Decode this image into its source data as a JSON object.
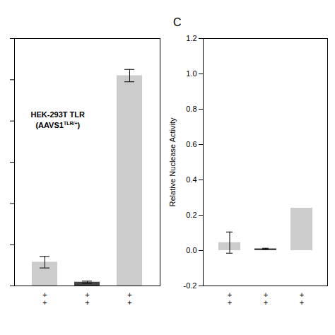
{
  "chart_data": [
    {
      "type": "bar",
      "categories": [
        "+\n+",
        "+\n+",
        "+\n+"
      ],
      "values": [
        0.115,
        0.018,
        1.02
      ],
      "errors": [
        0.028,
        0.005,
        0.03
      ],
      "colors": [
        "#cccccc",
        "#444444",
        "#cccccc"
      ],
      "ylim": [
        0,
        1.2
      ],
      "yticks": [
        0,
        0.2,
        0.4,
        0.6,
        0.8,
        1,
        1.2
      ],
      "tick_labels": "x",
      "grid": false,
      "annotations": [
        "HEK-293T TLR",
        "(AAVS1",
        "TLR/+",
        ")"
      ]
    },
    {
      "type": "bar",
      "title": "C",
      "ylabel": "Relative Nuclease Activity",
      "categories": [
        "+\n+",
        "+\n+",
        "+\n+"
      ],
      "values": [
        0.045,
        0.01,
        0.24
      ],
      "errors": [
        0.06,
        0.003,
        0.0
      ],
      "colors": [
        "#cccccc",
        "#444444",
        "#cccccc"
      ],
      "ylim": [
        -0.2,
        1.2
      ],
      "yticks": [
        -0.2,
        {
          "value": 0,
          "label": "0.0"
        },
        0.2,
        0.4,
        0.6,
        0.8,
        {
          "value": 1,
          "label": "1.0"
        },
        1.2
      ],
      "grid": false
    }
  ]
}
